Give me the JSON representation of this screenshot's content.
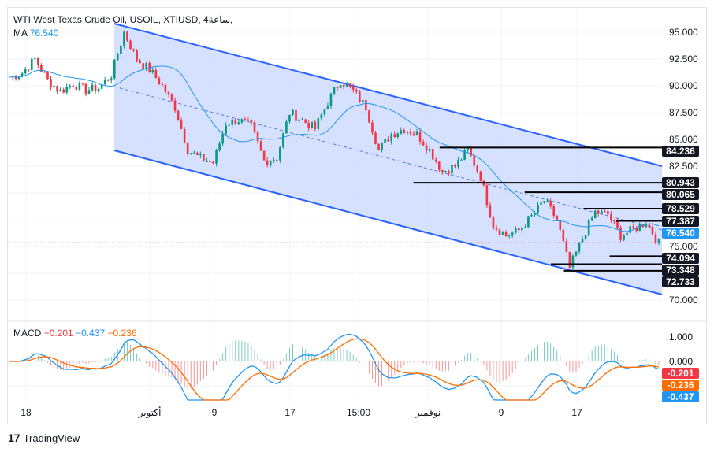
{
  "header": {
    "symbol": "WTI West Texas Crude Oil, USOIL, XTIUSD, 4ساعة,",
    "ma_label": "MA",
    "ma_value": "76.540"
  },
  "macd_legend": {
    "label": "MACD",
    "hist": "−0.201",
    "macd": "−0.437",
    "signal": "−0.236"
  },
  "colors": {
    "up": "#089981",
    "down": "#f23645",
    "ma": "#2196f3",
    "channel": "#2962ff",
    "channel_fill": "#cfdcff",
    "signal": "#ff6d00"
  },
  "chart_data": {
    "type": "candlestick",
    "title": "WTI West Texas Crude Oil, USOIL, XTIUSD, 4H",
    "ylim": [
      68.5,
      96.5
    ],
    "y_ticks": [
      "95.000",
      "92.500",
      "90.000",
      "87.500",
      "85.000",
      "82.500",
      "75.000",
      "70.000"
    ],
    "x_ticks": [
      "18",
      "أكتوبر",
      "9",
      "17",
      "15:00",
      "نوفمبر",
      "9",
      "17"
    ],
    "close_path": [
      90.8,
      91.2,
      92.5,
      90.5,
      89.5,
      90.2,
      89.6,
      89.8,
      91,
      95,
      92.5,
      91.5,
      90,
      88,
      84,
      83.2,
      82.8,
      86.5,
      86.8,
      86.2,
      83,
      83.3,
      87.5,
      86.8,
      86,
      88.5,
      90.5,
      89.5,
      88,
      84,
      85.5,
      86,
      85.5,
      84,
      82,
      82.5,
      84,
      81.5,
      77,
      76,
      76.5,
      77.8,
      79.3,
      77.5,
      73,
      75.8,
      78.2,
      78,
      76,
      76.6,
      77.3,
      75.3
    ],
    "levels": [
      {
        "value": "84.236",
        "price": 84.236,
        "from": 0.66
      },
      {
        "value": "80.943",
        "price": 80.943,
        "from": 0.62
      },
      {
        "value": "80.065",
        "price": 80.065,
        "from": 0.79
      },
      {
        "value": "78.529",
        "price": 78.529,
        "from": 0.88
      },
      {
        "value": "77.387",
        "price": 77.387,
        "from": 0.93
      },
      {
        "value": "74.094",
        "price": 74.094,
        "from": 0.92
      },
      {
        "value": "73.348",
        "price": 73.348,
        "from": 0.83
      },
      {
        "value": "72.733",
        "price": 72.733,
        "from": 0.85
      }
    ],
    "current_ma": {
      "value": "76.540",
      "price": 76.54
    },
    "last_price": 75.35,
    "macd": {
      "y_ticks": [
        "1.000",
        "0.000"
      ],
      "hist": "-0.201",
      "signal": "-0.236",
      "macd": "-0.437"
    }
  },
  "footer": {
    "brand": "TradingView"
  }
}
